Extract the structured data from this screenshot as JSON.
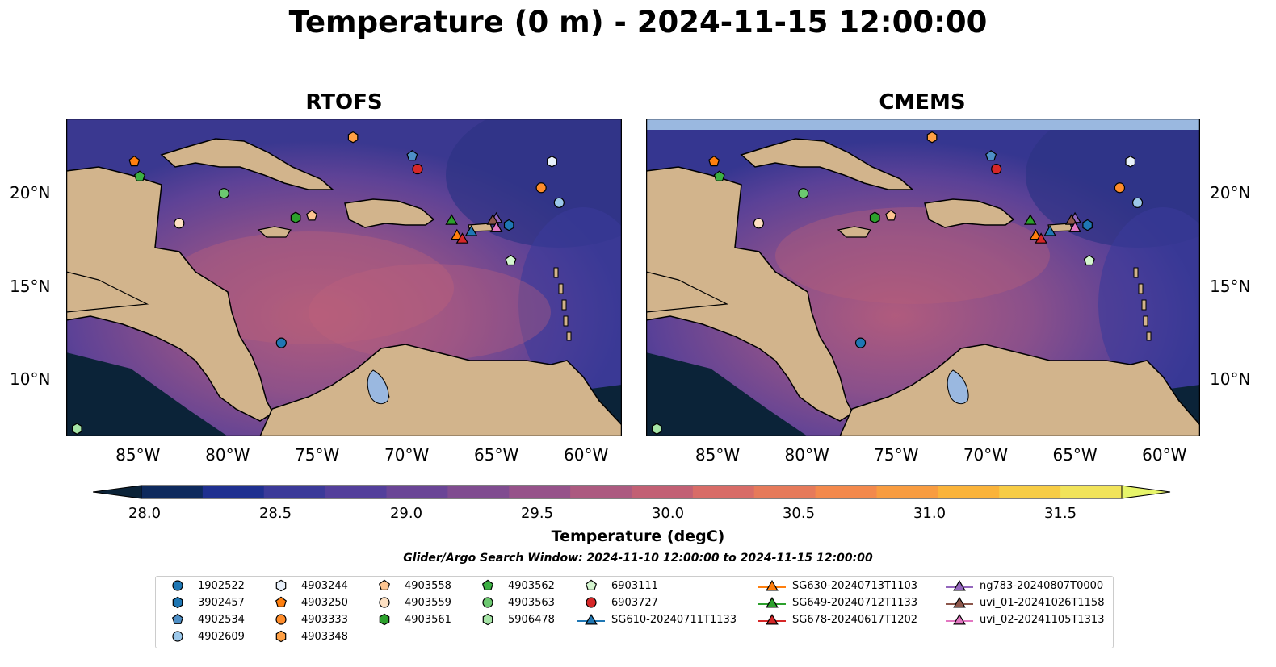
{
  "title": "Temperature (0 m) - 2024-11-15 12:00:00",
  "panels": [
    {
      "title": "RTOFS"
    },
    {
      "title": "CMEMS"
    }
  ],
  "lon_ticks": [
    "85°W",
    "80°W",
    "75°W",
    "70°W",
    "65°W",
    "60°W"
  ],
  "lat_ticks": [
    "20°N",
    "15°N",
    "10°N"
  ],
  "map_extent": {
    "lon": [
      -89,
      -58
    ],
    "lat": [
      7,
      24
    ]
  },
  "colorbar": {
    "label": "Temperature (degC)",
    "ticks": [
      "28.0",
      "28.5",
      "29.0",
      "29.5",
      "30.0",
      "30.5",
      "31.0",
      "31.5"
    ],
    "range": [
      28.0,
      31.5
    ],
    "colors": [
      "#0b2338",
      "#0e2a5d",
      "#1f3090",
      "#3b3a99",
      "#533f9b",
      "#6a4596",
      "#804c90",
      "#96528a",
      "#ac5a80",
      "#c26074",
      "#d86c67",
      "#e67a5a",
      "#f3894c",
      "#f89c40",
      "#fab33a",
      "#f7cc45",
      "#f1e35a",
      "#e7f56a"
    ]
  },
  "search_window": "Glider/Argo Search Window: 2024-11-10 12:00:00 to 2024-11-15 12:00:00",
  "colors": {
    "land": "#d2b48c",
    "lake": "#9ab8e0",
    "river": "#a3c0d6",
    "coast": "#000000"
  },
  "legend": [
    {
      "label": "1902522",
      "marker": "circle",
      "color": "#1f77b4"
    },
    {
      "label": "3902457",
      "marker": "hexagon",
      "color": "#1f77b4"
    },
    {
      "label": "4902534",
      "marker": "pentagon",
      "color": "#4e8fc6"
    },
    {
      "label": "4902609",
      "marker": "circle",
      "color": "#9cc8ea"
    },
    {
      "label": "4903244",
      "marker": "hexagon",
      "color": "#e8f0fa"
    },
    {
      "label": "4903250",
      "marker": "pentagon",
      "color": "#ff7f0e"
    },
    {
      "label": "4903333",
      "marker": "circle",
      "color": "#ff8c2a"
    },
    {
      "label": "4903348",
      "marker": "hexagon",
      "color": "#ffa045"
    },
    {
      "label": "4903558",
      "marker": "pentagon",
      "color": "#fdc591"
    },
    {
      "label": "4903559",
      "marker": "circle",
      "color": "#fde0c2"
    },
    {
      "label": "4903561",
      "marker": "hexagon",
      "color": "#2ca02c"
    },
    {
      "label": "4903562",
      "marker": "pentagon",
      "color": "#3cb043"
    },
    {
      "label": "4903563",
      "marker": "circle",
      "color": "#6cc870"
    },
    {
      "label": "5906478",
      "marker": "hexagon",
      "color": "#a6e4a6"
    },
    {
      "label": "6903111",
      "marker": "pentagon",
      "color": "#d4f5cf"
    },
    {
      "label": "6903727",
      "marker": "circle",
      "color": "#d62728"
    },
    {
      "label": "SG610-20240711T1133",
      "marker": "triangle",
      "color": "#1f77b4"
    },
    {
      "label": "SG630-20240713T1103",
      "marker": "triangle",
      "color": "#ff7f0e"
    },
    {
      "label": "SG649-20240712T1133",
      "marker": "triangle",
      "color": "#2ca02c"
    },
    {
      "label": "SG678-20240617T1202",
      "marker": "triangle",
      "color": "#d62728"
    },
    {
      "label": "ng783-20240807T0000",
      "marker": "triangle",
      "color": "#9467bd"
    },
    {
      "label": "uvi_01-20241026T1158",
      "marker": "triangle",
      "color": "#8c564b"
    },
    {
      "label": "uvi_02-20241105T1313",
      "marker": "triangle",
      "color": "#e377c2"
    }
  ],
  "platform_positions": [
    {
      "id": "1902522",
      "lon": -77.0,
      "lat": 12.0
    },
    {
      "id": "3902457",
      "lon": -64.3,
      "lat": 18.3
    },
    {
      "id": "4902534",
      "lon": -69.7,
      "lat": 22.0
    },
    {
      "id": "4902609",
      "lon": -61.5,
      "lat": 19.5
    },
    {
      "id": "4903244",
      "lon": -61.9,
      "lat": 21.7
    },
    {
      "id": "4903250",
      "lon": -85.2,
      "lat": 21.7
    },
    {
      "id": "4903333",
      "lon": -62.5,
      "lat": 20.3
    },
    {
      "id": "4903348",
      "lon": -73.0,
      "lat": 23.0
    },
    {
      "id": "4903558",
      "lon": -75.3,
      "lat": 18.8
    },
    {
      "id": "4903559",
      "lon": -82.7,
      "lat": 18.4
    },
    {
      "id": "4903561",
      "lon": -76.2,
      "lat": 18.7
    },
    {
      "id": "4903562",
      "lon": -84.9,
      "lat": 20.9
    },
    {
      "id": "4903563",
      "lon": -80.2,
      "lat": 20.0
    },
    {
      "id": "5906478",
      "lon": -88.4,
      "lat": 7.4
    },
    {
      "id": "6903111",
      "lon": -64.2,
      "lat": 16.4
    },
    {
      "id": "6903727",
      "lon": -69.4,
      "lat": 21.3
    },
    {
      "id": "SG610-20240711T1133",
      "lon": -66.4,
      "lat": 18.0
    },
    {
      "id": "SG630-20240713T1103",
      "lon": -67.2,
      "lat": 17.8
    },
    {
      "id": "SG649-20240712T1133",
      "lon": -67.5,
      "lat": 18.6
    },
    {
      "id": "SG678-20240617T1202",
      "lon": -66.9,
      "lat": 17.6
    },
    {
      "id": "ng783-20240807T0000",
      "lon": -65.0,
      "lat": 18.7
    },
    {
      "id": "uvi_01-20241026T1158",
      "lon": -65.2,
      "lat": 18.6
    },
    {
      "id": "uvi_02-20241105T1313",
      "lon": -65.0,
      "lat": 18.2
    }
  ]
}
